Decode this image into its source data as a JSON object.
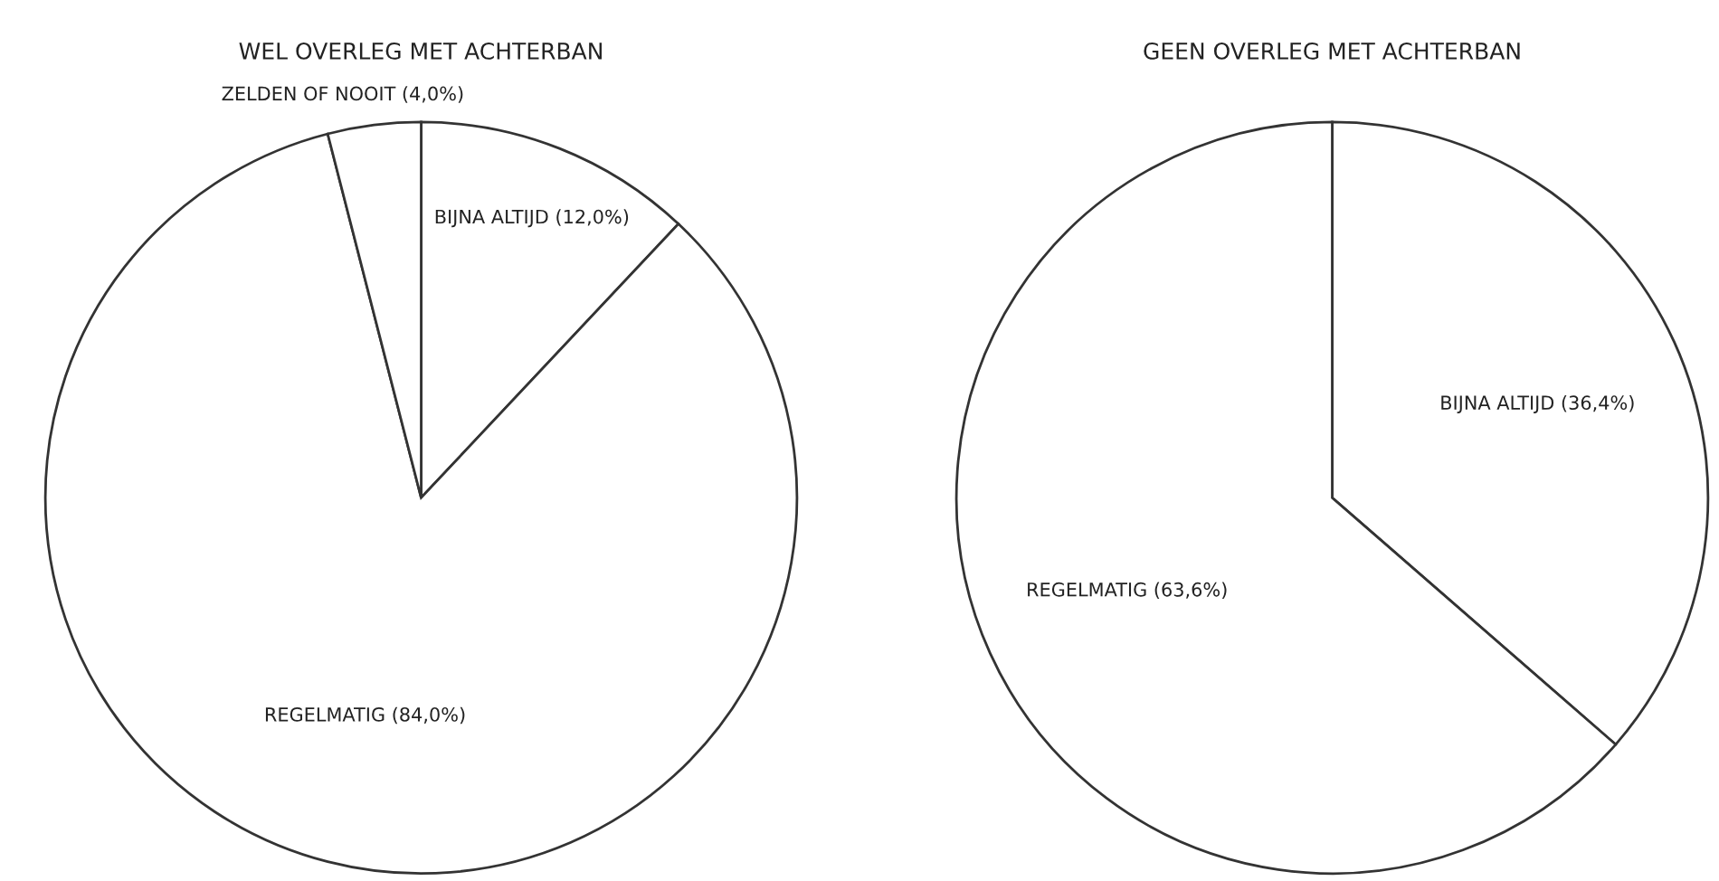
{
  "chart_data": [
    {
      "type": "pie",
      "title": "WEL OVERLEG MET ACHTERBAN",
      "categories": [
        "BIJNA ALTIJD",
        "REGELMATIG",
        "ZELDEN OF NOOIT"
      ],
      "values": [
        12.0,
        84.0,
        4.0
      ],
      "value_labels": [
        "(12,0%)",
        "(84,0%)",
        "(4,0%)"
      ],
      "colors": [
        "#ffffff",
        "#ffffff",
        "#ffffff"
      ]
    },
    {
      "type": "pie",
      "title": "GEEN OVERLEG MET ACHTERBAN",
      "categories": [
        "BIJNA ALTIJD",
        "REGELMATIG"
      ],
      "values": [
        36.4,
        63.6
      ],
      "value_labels": [
        "(36,4%)",
        "(63,6%)"
      ],
      "colors": [
        "#ffffff",
        "#ffffff"
      ]
    }
  ]
}
